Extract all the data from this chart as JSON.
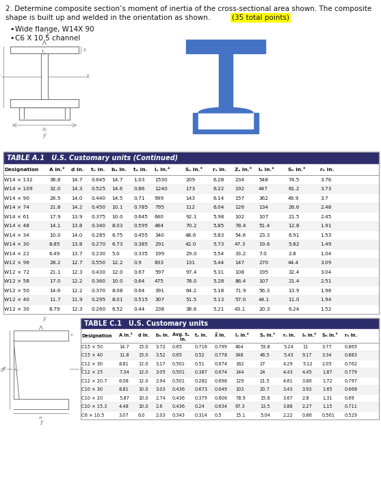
{
  "title_line1": "2. Determine composite section’s moment of inertia of the cross-sectional area shown. The composite",
  "title_line2": "shape is built up and welded in the orientation as shown.",
  "highlight_text": "(35 total points)",
  "bullets": [
    "Wide flange, W14X 90",
    "C6 X 10.5 channel"
  ],
  "table_a_title": "TABLE A.1   U.S. Customary units (Continued)",
  "table_a_headers": [
    "Designation",
    "A in.²",
    "d in.",
    "tₑ in.",
    "bₔ in.",
    "tₔ in.",
    "Iₓ in.⁴",
    "Sₓ in.³",
    "rₓ in.",
    "Zₓ in.³",
    "Iₕ in.⁴",
    "Sₕ in.³",
    "rₕ in."
  ],
  "table_a_rows": [
    [
      "W14 × 132",
      "38.8",
      "14.7",
      "0.645",
      "14.7",
      "1.03",
      "1530",
      "209",
      "6.28",
      "234",
      "548",
      "74.5",
      "3.76"
    ],
    [
      "W14 × 109",
      "32.0",
      "14.3",
      "0.525",
      "14.6",
      "0.86",
      "1240",
      "173",
      "6.22",
      "192",
      "447",
      "61.2",
      "3.73"
    ],
    [
      "W14 × 90",
      "26.5",
      "14.0",
      "0.440",
      "14.5",
      "0.71",
      "999",
      "143",
      "6.14",
      "157",
      "362",
      "49.9",
      "3.7"
    ],
    [
      "W14 × 74",
      "21.8",
      "14.2",
      "0.450",
      "10.1",
      "0.785",
      "795",
      "112",
      "6.04",
      "126",
      "134",
      "26.6",
      "2.48"
    ],
    [
      "W14 × 61",
      "17.9",
      "13.9",
      "0.375",
      "10.0",
      "0.645",
      "640",
      "92.1",
      "5.98",
      "102",
      "107",
      "21.5",
      "2.45"
    ],
    [
      "W14 × 48",
      "14.1",
      "13.8",
      "0.340",
      "8.03",
      "0.595",
      "484",
      "70.2",
      "5.85",
      "78.4",
      "51.4",
      "12.8",
      "1.91"
    ],
    [
      "W14 × 34",
      "10.0",
      "14.0",
      "0.285",
      "6.75",
      "0.455",
      "340",
      "48.6",
      "5.83",
      "54.6",
      "23.3",
      "6.91",
      "1.53"
    ],
    [
      "W14 × 30",
      "8.85",
      "13.8",
      "0.270",
      "6.73",
      "0.385",
      "291",
      "42.0",
      "5.73",
      "47.3",
      "19.6",
      "5.82",
      "1.49"
    ],
    [
      "W14 × 22",
      "6.49",
      "13.7",
      "0.230",
      "5.0",
      "0.335",
      "199",
      "29.0",
      "5.54",
      "33.2",
      "7.0",
      "2.8",
      "1.04"
    ],
    [
      "W12 × 96",
      "28.2",
      "12.7",
      "0.550",
      "12.2",
      "0.9",
      "833",
      "131",
      "5.44",
      "147",
      "270",
      "44.4",
      "3.09"
    ],
    [
      "W12 × 72",
      "21.1",
      "12.3",
      "0.430",
      "12.0",
      "0.67",
      "597",
      "97.4",
      "5.31",
      "108",
      "195",
      "32.4",
      "3.04"
    ],
    [
      "W12 × 58",
      "17.0",
      "12.2",
      "0.360",
      "10.0",
      "0.64",
      "475",
      "78.0",
      "5.28",
      "86.4",
      "107",
      "21.4",
      "2.51"
    ],
    [
      "W12 × 50",
      "14.6",
      "12.2",
      "0.370",
      "8.08",
      "0.64",
      "391",
      "64.2",
      "5.18",
      "71.9",
      "56.3",
      "13.9",
      "1.96"
    ],
    [
      "W12 × 40",
      "11.7",
      "11.9",
      "0.295",
      "8.01",
      "0.515",
      "307",
      "51.5",
      "5.13",
      "57.0",
      "44.1",
      "11.0",
      "1.94"
    ],
    [
      "W12 × 30",
      "8.79",
      "12.3",
      "0.260",
      "6.52",
      "0.44",
      "238",
      "38.6",
      "5.21",
      "43.1",
      "20.3",
      "6.24",
      "1.52"
    ]
  ],
  "table_c_title": "TABLE C.1   U.S. Customary units",
  "table_c_headers": [
    "Designation",
    "A in.²",
    "d in.",
    "bₔ in.",
    "Avg. tₔ\n     in.",
    "tₑ in.",
    "x̅ in.",
    "Iₓ in.⁴",
    "Sₓ in.³",
    "rₓ in.",
    "Iₕ in.⁴",
    "Sₕ in.³",
    "rₕ in."
  ],
  "table_c_rows": [
    [
      "C15 × 50",
      "14.7",
      "15.0",
      "3.72",
      "0.65",
      "0.716",
      "0.799",
      "404",
      "53.8",
      "5.24",
      "11",
      "3.77",
      "0.865"
    ],
    [
      "C15 × 40",
      "11.8",
      "15.0",
      "3.52",
      "0.65",
      "0.52",
      "0.778",
      "348",
      "46.5",
      "5.43",
      "9.17",
      "3.34",
      "0.883"
    ],
    [
      "C12 × 30",
      "8.81",
      "12.0",
      "3.17",
      "0.501",
      "0.51",
      "0.674",
      "162",
      "27",
      "4.29",
      "5.12",
      "2.05",
      "0.762"
    ],
    [
      "C12 × 25",
      "7.34",
      "12.0",
      "3.05",
      "0.501",
      "0.387",
      "0.674",
      "144",
      "24",
      "4.43",
      "4.45",
      "1.87",
      "0.779"
    ],
    [
      "C12 × 20.7",
      "6.08",
      "12.0",
      "2.94",
      "0.501",
      "0.282",
      "0.698",
      "129",
      "21.5",
      "4.61",
      "3.86",
      "1.72",
      "0.797"
    ],
    [
      "C10 × 30",
      "8.81",
      "10.0",
      "3.03",
      "0.436",
      "0.673",
      "0.649",
      "103",
      "20.7",
      "3.43",
      "3.93",
      "1.65",
      "0.668"
    ],
    [
      "C10 × 20",
      "5.87",
      "10.0",
      "2.74",
      "0.436",
      "0.379",
      "0.606",
      "78.9",
      "15.8",
      "3.67",
      "2.8",
      "1.31",
      "0.69"
    ],
    [
      "C10 × 15.3",
      "4.48",
      "10.0",
      "2.6",
      "0.436",
      "0.24",
      "0.634",
      "67.3",
      "13.5",
      "3.88",
      "2.27",
      "1.15",
      "0.711"
    ],
    [
      "C6 × 10.5",
      "3.07",
      "6.0",
      "2.03",
      "0.343",
      "0.314",
      "0.5",
      "15.1",
      "5.04",
      "2.22",
      "0.86",
      "0.561",
      "0.529"
    ]
  ],
  "bg_color": "#ffffff",
  "table_header_bg": "#2d2d6b",
  "shape_color": "#4472c4",
  "gray": "#777777"
}
